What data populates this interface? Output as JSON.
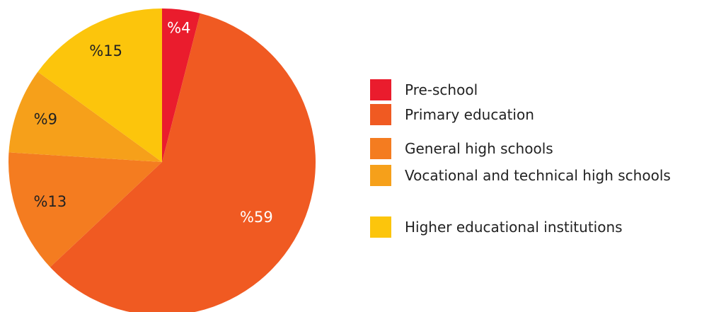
{
  "chart_data": {
    "type": "pie",
    "categories": [
      "Pre-school",
      "Primary education",
      "General high schools",
      "Vocational and technical high schools",
      "Higher educational institutions"
    ],
    "values": [
      4,
      59,
      13,
      9,
      15
    ],
    "value_labels": [
      "%4",
      "%59",
      "%13",
      "%9",
      "%15"
    ],
    "colors": [
      "#ea1c2d",
      "#f05a22",
      "#f47c20",
      "#f6a01a",
      "#fcc50c"
    ],
    "label_colors": [
      "#ffffff",
      "#ffffff",
      "#222222",
      "#222222",
      "#222222"
    ],
    "start": "top",
    "direction": "clockwise",
    "legend_position": "right"
  },
  "legend": {
    "items": [
      {
        "label": "Pre-school",
        "color": "#ea1c2d"
      },
      {
        "label": "Primary education",
        "color": "#f05a22"
      },
      {
        "label": "General high schools",
        "color": "#f47c20"
      },
      {
        "label": "Vocational and technical high schools",
        "color": "#f6a01a"
      },
      {
        "label": "Higher educational institutions",
        "color": "#fcc50c"
      }
    ]
  }
}
